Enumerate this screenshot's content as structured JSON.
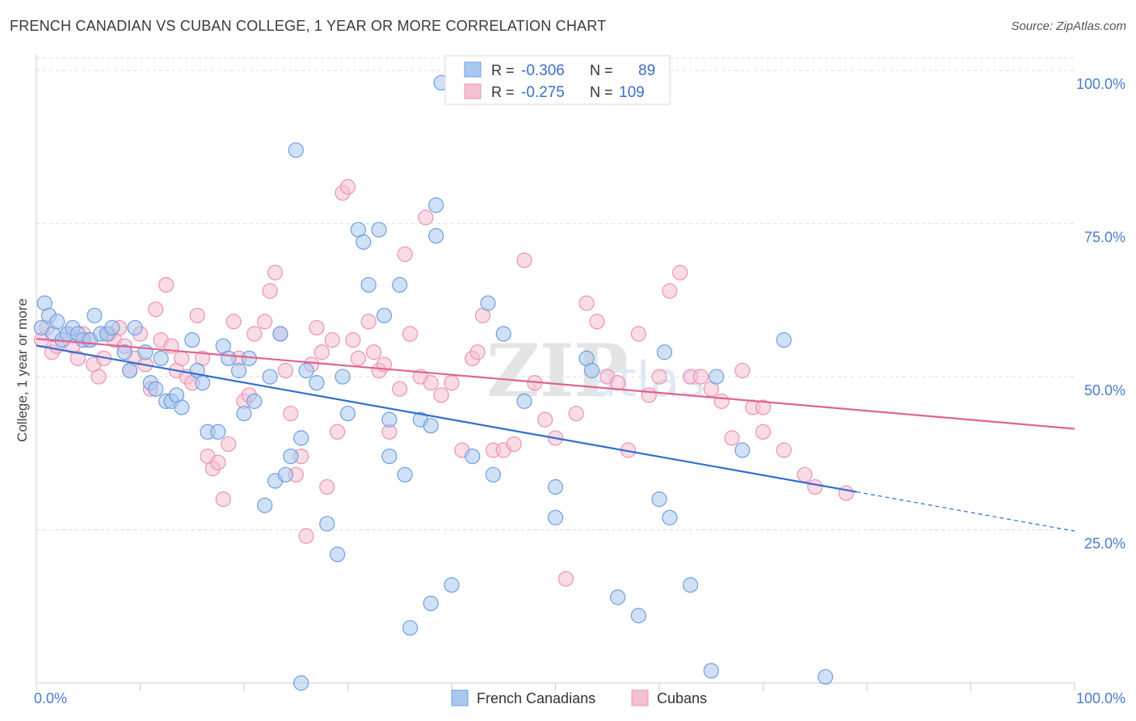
{
  "title": "FRENCH CANADIAN VS CUBAN COLLEGE, 1 YEAR OR MORE CORRELATION CHART",
  "source": "Source: ZipAtlas.com",
  "watermark": "ZIPatlas",
  "legend": {
    "r_label": "R =",
    "n_label": "N =",
    "rows": [
      {
        "r": "-0.306",
        "n": "89"
      },
      {
        "r": "-0.275",
        "n": "109"
      }
    ]
  },
  "colors": {
    "blue_fill": "#a9c8f0",
    "blue_stroke": "#6f9fe0",
    "blue_line": "#2f6fd1",
    "pink_fill": "#f6bfd2",
    "pink_stroke": "#ec93b1",
    "pink_line": "#e0648e",
    "grid": "#dddddd",
    "tick_text": "#4a7cc9"
  },
  "chart_data": {
    "type": "scatter",
    "title": "FRENCH CANADIAN VS CUBAN COLLEGE, 1 YEAR OR MORE CORRELATION CHART",
    "xlabel": "",
    "ylabel": "College, 1 year or more",
    "xlim": [
      0,
      100
    ],
    "ylim": [
      0,
      102
    ],
    "x_ticks": [
      {
        "value": 0,
        "label": "0.0%"
      },
      {
        "value": 100,
        "label": "100.0%"
      }
    ],
    "y_ticks": [
      {
        "value": 25,
        "label": "25.0%"
      },
      {
        "value": 50,
        "label": "50.0%"
      },
      {
        "value": 75,
        "label": "75.0%"
      },
      {
        "value": 100,
        "label": "100.0%"
      }
    ],
    "grid": "horizontal dashed",
    "legend_position": "top-center",
    "series": [
      {
        "name": "French Canadians",
        "color": "#a9c8f0",
        "trend": {
          "x0": 0,
          "y0": 55.1,
          "x1": 79,
          "y1": 31.2,
          "x_dash_end": 100,
          "y_dash_end": 24.8
        },
        "points": [
          [
            0.5,
            58
          ],
          [
            0.8,
            62
          ],
          [
            1.2,
            60
          ],
          [
            1.6,
            57
          ],
          [
            2,
            59
          ],
          [
            2.5,
            56
          ],
          [
            3,
            57
          ],
          [
            3.5,
            58
          ],
          [
            4,
            57
          ],
          [
            4.5,
            56
          ],
          [
            5.2,
            56
          ],
          [
            5.6,
            60
          ],
          [
            6.2,
            57
          ],
          [
            6.8,
            57
          ],
          [
            7.3,
            58
          ],
          [
            8.5,
            54
          ],
          [
            9,
            51
          ],
          [
            9.5,
            58
          ],
          [
            10.5,
            54
          ],
          [
            11,
            49
          ],
          [
            11.5,
            48
          ],
          [
            12,
            53
          ],
          [
            12.5,
            46
          ],
          [
            13,
            46
          ],
          [
            13.5,
            47
          ],
          [
            14,
            45
          ],
          [
            15,
            56
          ],
          [
            15.5,
            51
          ],
          [
            16,
            49
          ],
          [
            16.5,
            41
          ],
          [
            17.5,
            41
          ],
          [
            18,
            55
          ],
          [
            18.5,
            53
          ],
          [
            19.5,
            51
          ],
          [
            20,
            44
          ],
          [
            20.5,
            53
          ],
          [
            21,
            46
          ],
          [
            22,
            29
          ],
          [
            22.5,
            50
          ],
          [
            23,
            33
          ],
          [
            23.5,
            57
          ],
          [
            24,
            34
          ],
          [
            24.5,
            37
          ],
          [
            25,
            87
          ],
          [
            25.5,
            40
          ],
          [
            26,
            51
          ],
          [
            27,
            49
          ],
          [
            28,
            26
          ],
          [
            29,
            21
          ],
          [
            29.5,
            50
          ],
          [
            30,
            44
          ],
          [
            31,
            74
          ],
          [
            31.5,
            72
          ],
          [
            32,
            65
          ],
          [
            33,
            74
          ],
          [
            33.5,
            60
          ],
          [
            34,
            43
          ],
          [
            35,
            65
          ],
          [
            34,
            37
          ],
          [
            35.5,
            34
          ],
          [
            36,
            9
          ],
          [
            37,
            43
          ],
          [
            38,
            42
          ],
          [
            38.5,
            78
          ],
          [
            38.5,
            73
          ],
          [
            39,
            98
          ],
          [
            38,
            13
          ],
          [
            40,
            16
          ],
          [
            42,
            37
          ],
          [
            43.5,
            62
          ],
          [
            44,
            34
          ],
          [
            45,
            57
          ],
          [
            47,
            46
          ],
          [
            50,
            27
          ],
          [
            53,
            53
          ],
          [
            53.5,
            51
          ],
          [
            56,
            14
          ],
          [
            58,
            11
          ],
          [
            60,
            30
          ],
          [
            60.5,
            54
          ],
          [
            61,
            27
          ],
          [
            63,
            16
          ],
          [
            65,
            2
          ],
          [
            65.5,
            50
          ],
          [
            68,
            38
          ],
          [
            72,
            56
          ],
          [
            76,
            1
          ],
          [
            50,
            32
          ],
          [
            25.5,
            0
          ]
        ]
      },
      {
        "name": "Cubans",
        "color": "#f6bfd2",
        "trend": {
          "x0": 0,
          "y0": 56.2,
          "x1": 100,
          "y1": 41.5
        },
        "points": [
          [
            0.5,
            56
          ],
          [
            1,
            58
          ],
          [
            1.5,
            54
          ],
          [
            2,
            55
          ],
          [
            3,
            57
          ],
          [
            3.5,
            55
          ],
          [
            4,
            53
          ],
          [
            4.5,
            57
          ],
          [
            5,
            56
          ],
          [
            5.5,
            52
          ],
          [
            6,
            50
          ],
          [
            6.5,
            53
          ],
          [
            7,
            57
          ],
          [
            7.5,
            56
          ],
          [
            8,
            58
          ],
          [
            8.5,
            55
          ],
          [
            9,
            51
          ],
          [
            9.5,
            53
          ],
          [
            10,
            57
          ],
          [
            10.5,
            52
          ],
          [
            11,
            48
          ],
          [
            11.5,
            61
          ],
          [
            12,
            56
          ],
          [
            12.5,
            65
          ],
          [
            13,
            55
          ],
          [
            13.5,
            51
          ],
          [
            14,
            53
          ],
          [
            14.5,
            50
          ],
          [
            15,
            49
          ],
          [
            15.5,
            60
          ],
          [
            16,
            53
          ],
          [
            16.5,
            37
          ],
          [
            17,
            35
          ],
          [
            17.5,
            36
          ],
          [
            18,
            30
          ],
          [
            18.5,
            39
          ],
          [
            19,
            59
          ],
          [
            19.5,
            53
          ],
          [
            20,
            46
          ],
          [
            20.5,
            47
          ],
          [
            21,
            57
          ],
          [
            22,
            59
          ],
          [
            22.5,
            64
          ],
          [
            23,
            67
          ],
          [
            23.5,
            57
          ],
          [
            24,
            51
          ],
          [
            24.5,
            44
          ],
          [
            25,
            34
          ],
          [
            25.5,
            37
          ],
          [
            26,
            24
          ],
          [
            26.5,
            52
          ],
          [
            27,
            58
          ],
          [
            27.5,
            54
          ],
          [
            28,
            32
          ],
          [
            28.5,
            56
          ],
          [
            29,
            41
          ],
          [
            29.5,
            80
          ],
          [
            30,
            81
          ],
          [
            30.5,
            56
          ],
          [
            31,
            53
          ],
          [
            32,
            59
          ],
          [
            32.5,
            54
          ],
          [
            33,
            51
          ],
          [
            33.5,
            52
          ],
          [
            34,
            41
          ],
          [
            35,
            48
          ],
          [
            35.5,
            70
          ],
          [
            36,
            57
          ],
          [
            37,
            50
          ],
          [
            37.5,
            76
          ],
          [
            38,
            49
          ],
          [
            39,
            47
          ],
          [
            40,
            49
          ],
          [
            41,
            38
          ],
          [
            42,
            53
          ],
          [
            42.5,
            54
          ],
          [
            43,
            60
          ],
          [
            44,
            38
          ],
          [
            45,
            38
          ],
          [
            46,
            39
          ],
          [
            47,
            69
          ],
          [
            48,
            49
          ],
          [
            49,
            43
          ],
          [
            50,
            40
          ],
          [
            51,
            17
          ],
          [
            52,
            44
          ],
          [
            53,
            62
          ],
          [
            54,
            59
          ],
          [
            55,
            50
          ],
          [
            56,
            49
          ],
          [
            57,
            38
          ],
          [
            58,
            57
          ],
          [
            59,
            47
          ],
          [
            61,
            64
          ],
          [
            62,
            67
          ],
          [
            63,
            50
          ],
          [
            64,
            50
          ],
          [
            65,
            48
          ],
          [
            66,
            46
          ],
          [
            67,
            40
          ],
          [
            68,
            51
          ],
          [
            69,
            45
          ],
          [
            70,
            41
          ],
          [
            72,
            38
          ],
          [
            74,
            34
          ],
          [
            75,
            32
          ],
          [
            78,
            31
          ],
          [
            70,
            45
          ],
          [
            60,
            50
          ]
        ]
      }
    ]
  }
}
